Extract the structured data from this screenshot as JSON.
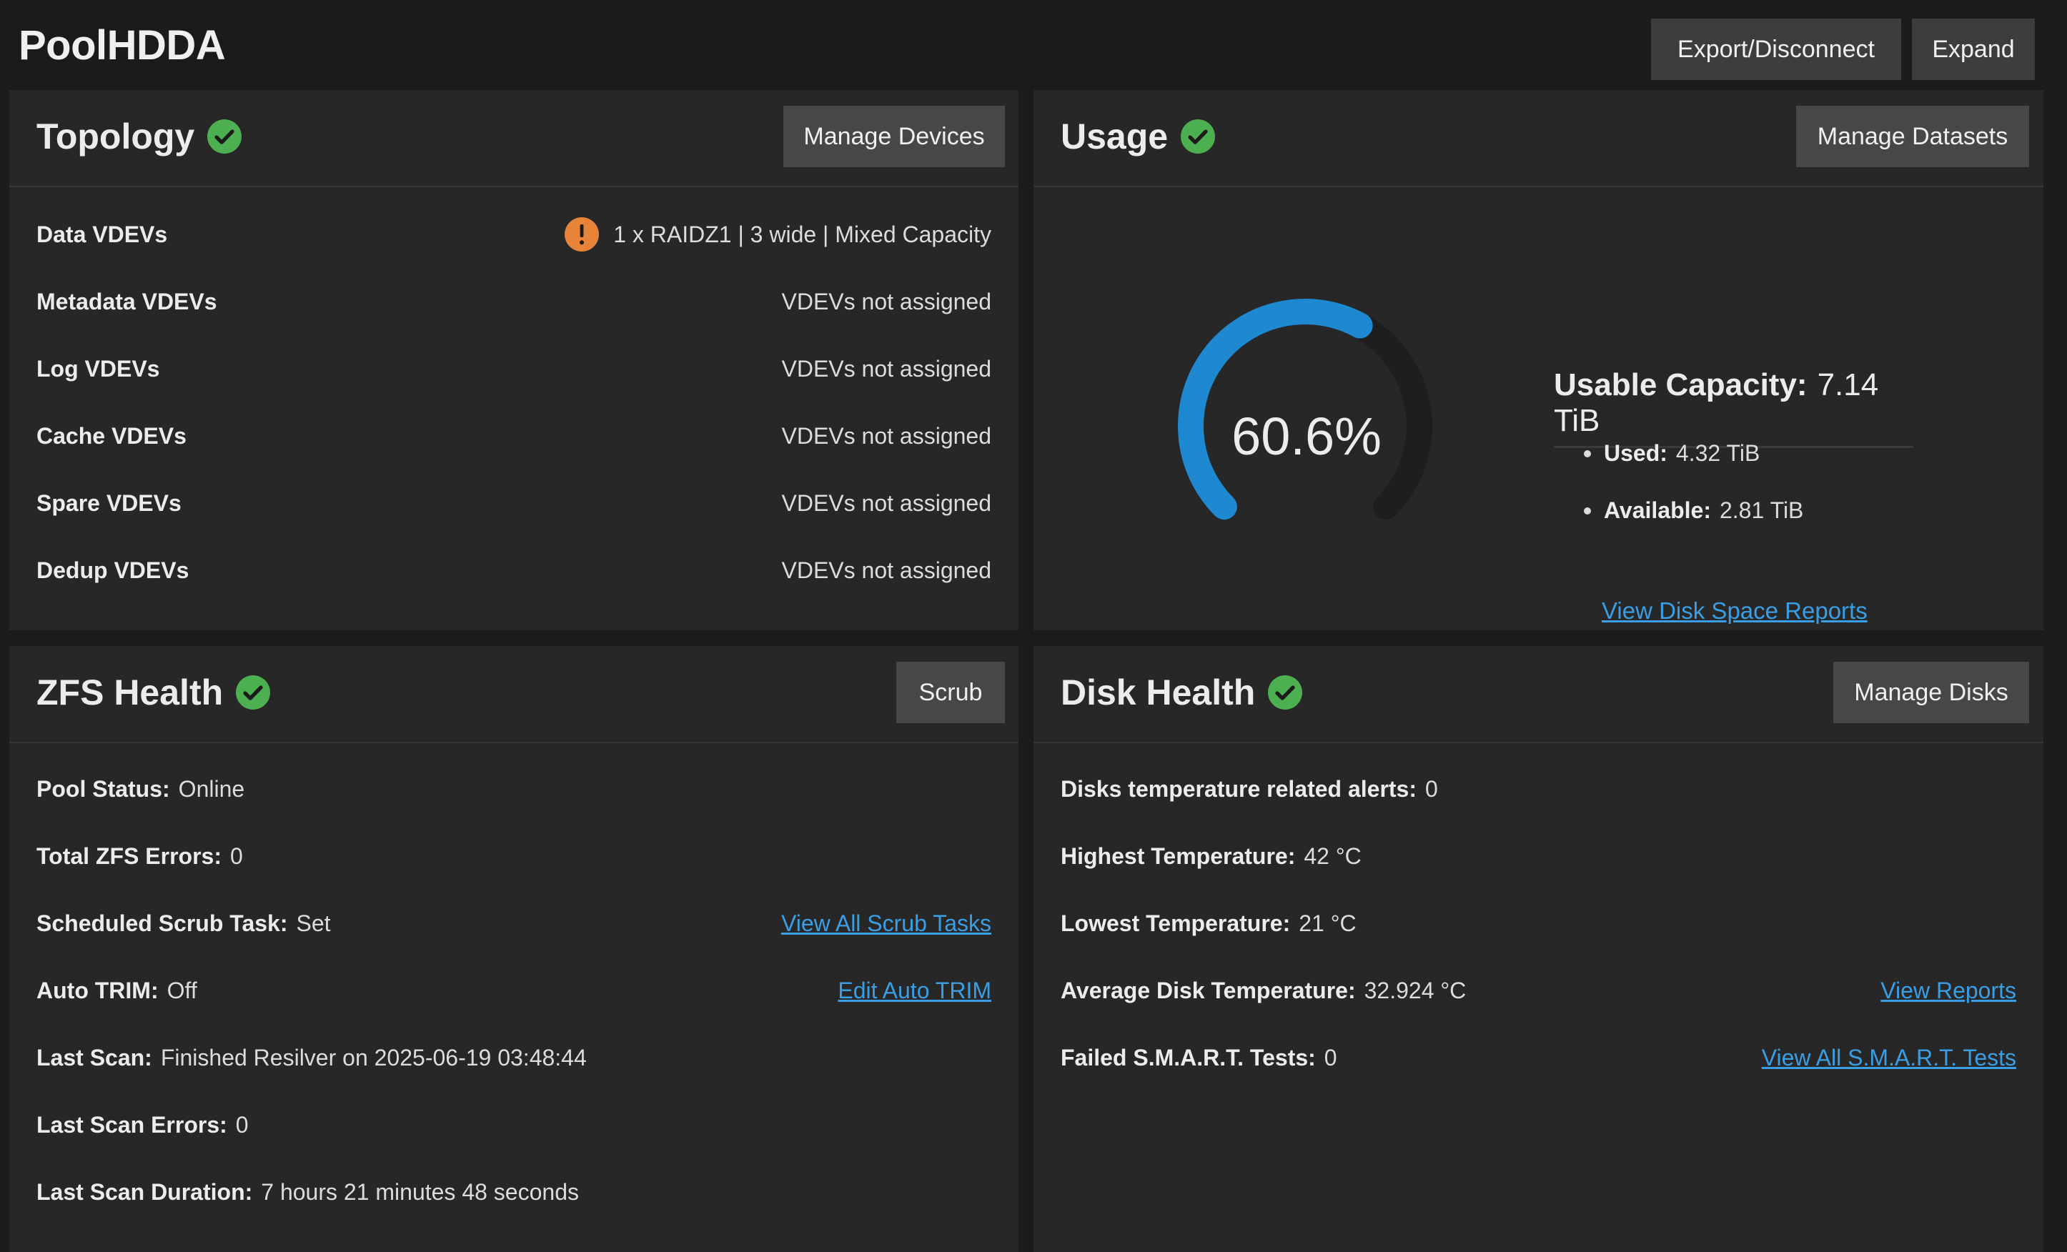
{
  "header": {
    "title": "PoolHDDA",
    "export_label": "Export/Disconnect",
    "expand_label": "Expand"
  },
  "colors": {
    "accent": "#1e88d0",
    "ok": "#4caf50",
    "warning": "#e8833a",
    "link": "#3a9ee4"
  },
  "topology": {
    "title": "Topology",
    "button": "Manage Devices",
    "rows": [
      {
        "label": "Data VDEVs",
        "value": "1 x RAIDZ1 | 3 wide | Mixed Capacity"
      },
      {
        "label": "Metadata VDEVs",
        "value": "VDEVs not assigned"
      },
      {
        "label": "Log VDEVs",
        "value": "VDEVs not assigned"
      },
      {
        "label": "Cache VDEVs",
        "value": "VDEVs not assigned"
      },
      {
        "label": "Spare VDEVs",
        "value": "VDEVs not assigned"
      },
      {
        "label": "Dedup VDEVs",
        "value": "VDEVs not assigned"
      }
    ]
  },
  "usage": {
    "title": "Usage",
    "button": "Manage Datasets",
    "percent_text": "60.6%",
    "percent_value": 60.6,
    "capacity_label": "Usable Capacity:",
    "capacity_value": "7.14 TiB",
    "used_label": "Used:",
    "used_value": "4.32 TiB",
    "available_label": "Available:",
    "available_value": "2.81 TiB",
    "reports_link": "View Disk Space Reports"
  },
  "zfs": {
    "title": "ZFS Health",
    "button": "Scrub",
    "pool_status_label": "Pool Status:",
    "pool_status": "Online",
    "errors_label": "Total ZFS Errors:",
    "errors": "0",
    "scrub_label": "Scheduled Scrub Task:",
    "scrub": "Set",
    "scrub_link": "View All Scrub Tasks",
    "trim_label": "Auto TRIM:",
    "trim": "Off",
    "trim_link": "Edit Auto TRIM",
    "last_scan_label": "Last Scan:",
    "last_scan": "Finished Resilver on 2025-06-19 03:48:44",
    "scan_errors_label": "Last Scan Errors:",
    "scan_errors": "0",
    "duration_label": "Last Scan Duration:",
    "duration": "7 hours 21 minutes 48 seconds"
  },
  "disk": {
    "title": "Disk Health",
    "button": "Manage Disks",
    "alerts_label": "Disks temperature related alerts:",
    "alerts": "0",
    "high_label": "Highest Temperature:",
    "high": "42 °C",
    "low_label": "Lowest Temperature:",
    "low": "21 °C",
    "avg_label": "Average Disk Temperature:",
    "avg": "32.924 °C",
    "reports_link": "View Reports",
    "smart_label": "Failed S.M.A.R.T. Tests:",
    "smart": "0",
    "smart_link": "View All S.M.A.R.T. Tests"
  }
}
